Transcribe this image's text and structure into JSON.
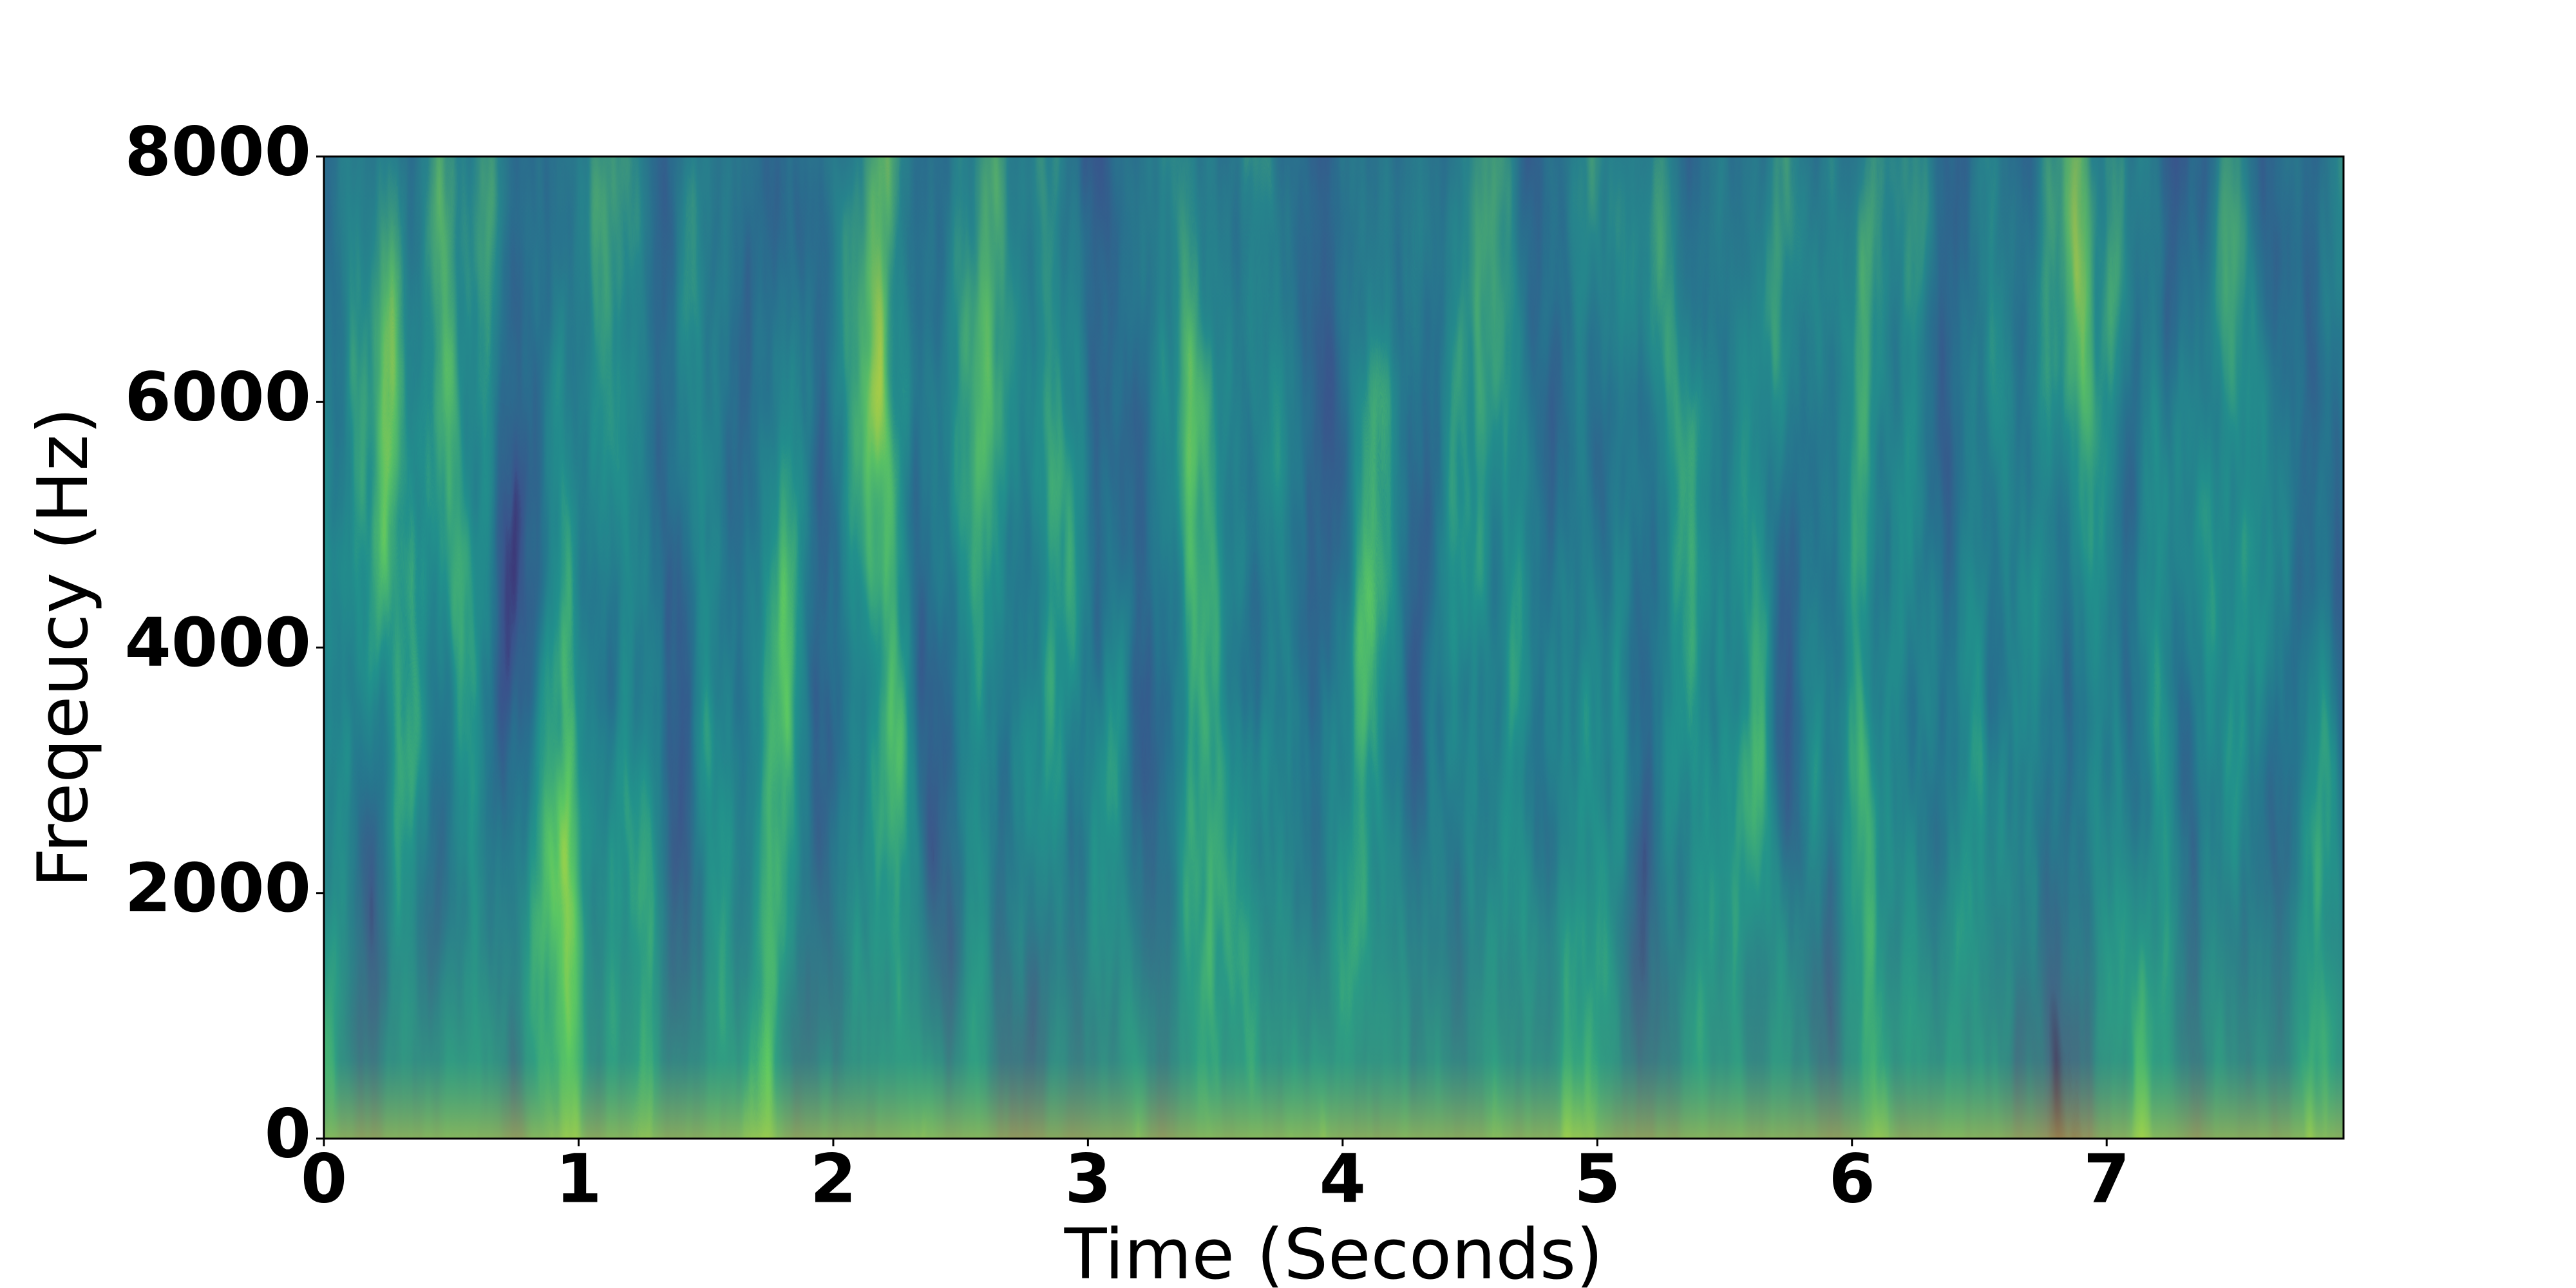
{
  "chart_data": {
    "type": "spectrogram",
    "xlabel": "Time (Seconds)",
    "ylabel": "Freqeucy (Hz)",
    "xlim": [
      0,
      7.93
    ],
    "xticks": [
      0,
      1,
      2,
      3,
      4,
      5,
      6,
      7
    ],
    "ylim": [
      0,
      8000
    ],
    "yticks": [
      0,
      2000,
      4000,
      6000,
      8000
    ]
  }
}
